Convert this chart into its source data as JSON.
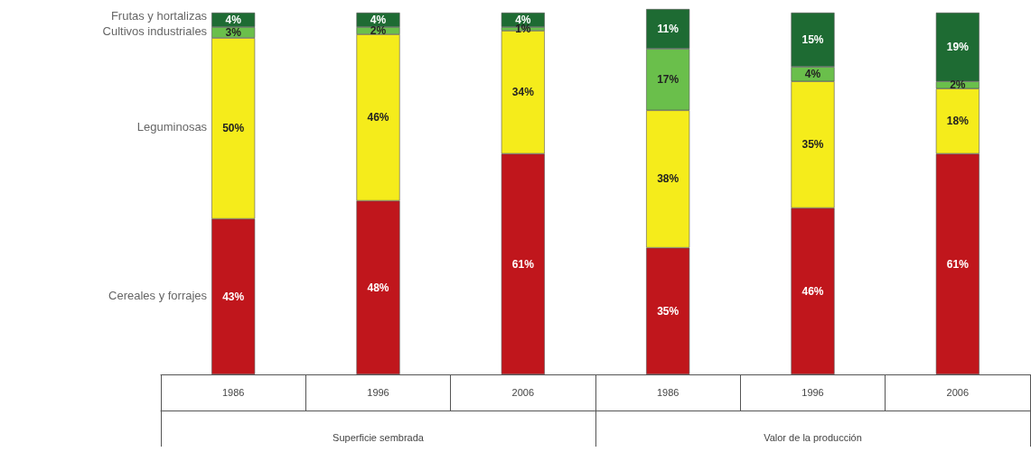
{
  "chart_data": {
    "type": "bar",
    "stacked": true,
    "categories": [
      "1986",
      "1996",
      "2006",
      "1986",
      "1996",
      "2006"
    ],
    "series": [
      {
        "name": "Cereales y forrajes",
        "color": "#c0161c",
        "values": [
          43,
          48,
          61,
          35,
          46,
          61
        ],
        "value_labels": [
          "43%",
          "48%",
          "61%",
          "35%",
          "46%",
          "61%"
        ]
      },
      {
        "name": "Leguminosas",
        "color": "#f5ec1b",
        "values": [
          50,
          46,
          34,
          38,
          35,
          18
        ],
        "value_labels": [
          "50%",
          "46%",
          "34%",
          "38%",
          "35%",
          "18%"
        ]
      },
      {
        "name": "Cultivos industriales",
        "color": "#6abf4b",
        "values": [
          3,
          2,
          1,
          17,
          4,
          2
        ],
        "value_labels": [
          "3%",
          "2%",
          "1%",
          "17%",
          "4%",
          "2%"
        ]
      },
      {
        "name": "Frutas y hortalizas",
        "color": "#1e6b33",
        "values": [
          4,
          4,
          4,
          11,
          15,
          19
        ],
        "value_labels": [
          "4%",
          "4%",
          "4%",
          "11%",
          "15%",
          "19%"
        ]
      }
    ],
    "annotations": [
      "Superficie sembrada",
      "Valor de la producción"
    ],
    "legend": false
  }
}
